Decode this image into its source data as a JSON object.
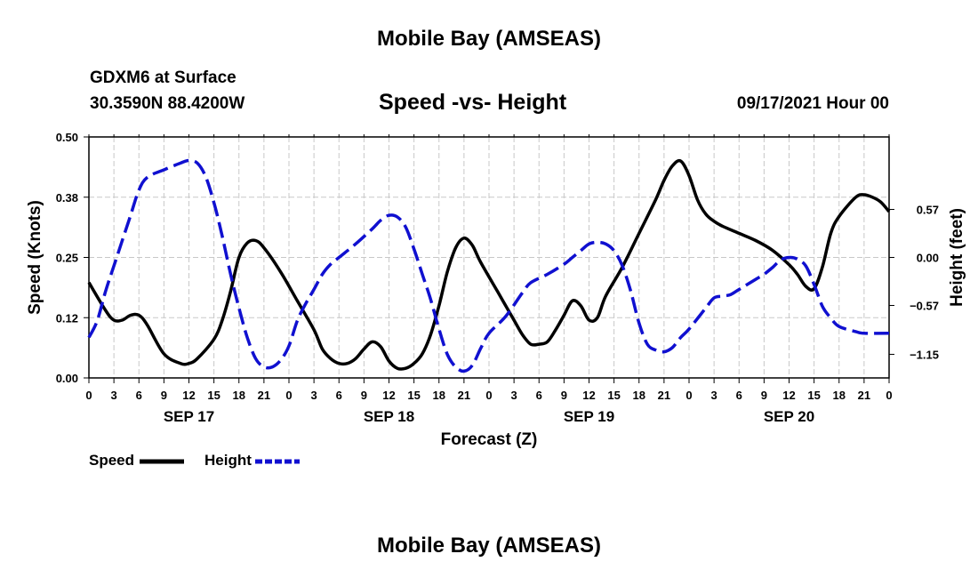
{
  "header": {
    "title": "Mobile Bay (AMSEAS)",
    "station": "GDXM6 at Surface",
    "coords": "30.3590N  88.4200W",
    "subtitle": "Speed -vs- Height",
    "datetime": "09/17/2021 Hour 00"
  },
  "footer": {
    "title": "Mobile Bay (AMSEAS)"
  },
  "legend": {
    "speed_label": "Speed",
    "height_label": "Height"
  },
  "colors": {
    "speed": "#000000",
    "height": "#1010d0",
    "grid": "#c8c8c8"
  },
  "chart_data": {
    "type": "line",
    "xlabel": "Forecast (Z)",
    "ylabel_left": "Speed (Knots)",
    "ylabel_right": "Height (feet)",
    "x_range_hours": [
      0,
      96
    ],
    "x_tick_step_hours": 3,
    "x_tick_labels": [
      "0",
      "3",
      "6",
      "9",
      "12",
      "15",
      "18",
      "21",
      "0",
      "3",
      "6",
      "9",
      "12",
      "15",
      "18",
      "21",
      "0",
      "3",
      "6",
      "9",
      "12",
      "15",
      "18",
      "21",
      "0",
      "3",
      "6",
      "9",
      "12",
      "15",
      "18",
      "21",
      "0"
    ],
    "date_labels": [
      {
        "hour": 12,
        "label": "SEP 17"
      },
      {
        "hour": 36,
        "label": "SEP 18"
      },
      {
        "hour": 60,
        "label": "SEP 19"
      },
      {
        "hour": 84,
        "label": "SEP 20"
      }
    ],
    "ylim_left": [
      0,
      0.5
    ],
    "yticks_left": [
      {
        "value": 0,
        "label": "0.00"
      },
      {
        "value": 0.125,
        "label": "0.12"
      },
      {
        "value": 0.25,
        "label": "0.25"
      },
      {
        "value": 0.375,
        "label": "0.38"
      },
      {
        "value": 0.5,
        "label": "0.50"
      }
    ],
    "ylim_right": [
      -1.43,
      1.43
    ],
    "yticks_right": [
      {
        "value": 0.57,
        "label": "0.57"
      },
      {
        "value": 0,
        "label": "0.00"
      },
      {
        "value": -0.57,
        "label": "−0.57"
      },
      {
        "value": -1.15,
        "label": "−1.15"
      }
    ],
    "grid": true,
    "legend_position": "bottom-left",
    "series": [
      {
        "name": "Speed",
        "axis": "left",
        "style": "solid",
        "points": [
          [
            0,
            0.198
          ],
          [
            2,
            0.14
          ],
          [
            3,
            0.12
          ],
          [
            4,
            0.12
          ],
          [
            5,
            0.13
          ],
          [
            6,
            0.13
          ],
          [
            7,
            0.11
          ],
          [
            9,
            0.05
          ],
          [
            11,
            0.03
          ],
          [
            12,
            0.03
          ],
          [
            13,
            0.04
          ],
          [
            15,
            0.08
          ],
          [
            16,
            0.12
          ],
          [
            17,
            0.18
          ],
          [
            18,
            0.25
          ],
          [
            19,
            0.28
          ],
          [
            20,
            0.285
          ],
          [
            21,
            0.27
          ],
          [
            23,
            0.22
          ],
          [
            25,
            0.16
          ],
          [
            27,
            0.1
          ],
          [
            28,
            0.06
          ],
          [
            29,
            0.04
          ],
          [
            30,
            0.03
          ],
          [
            31,
            0.03
          ],
          [
            32,
            0.04
          ],
          [
            33,
            0.06
          ],
          [
            34,
            0.075
          ],
          [
            35,
            0.065
          ],
          [
            36,
            0.035
          ],
          [
            37,
            0.02
          ],
          [
            38,
            0.02
          ],
          [
            39,
            0.03
          ],
          [
            40,
            0.05
          ],
          [
            41,
            0.09
          ],
          [
            42,
            0.15
          ],
          [
            43,
            0.22
          ],
          [
            44,
            0.27
          ],
          [
            45,
            0.29
          ],
          [
            46,
            0.275
          ],
          [
            47,
            0.24
          ],
          [
            49,
            0.18
          ],
          [
            51,
            0.12
          ],
          [
            52,
            0.09
          ],
          [
            53,
            0.07
          ],
          [
            54,
            0.07
          ],
          [
            55,
            0.075
          ],
          [
            56,
            0.1
          ],
          [
            57,
            0.13
          ],
          [
            58,
            0.16
          ],
          [
            59,
            0.15
          ],
          [
            60,
            0.12
          ],
          [
            61,
            0.125
          ],
          [
            62,
            0.17
          ],
          [
            64,
            0.23
          ],
          [
            66,
            0.3
          ],
          [
            68,
            0.37
          ],
          [
            69,
            0.41
          ],
          [
            70,
            0.44
          ],
          [
            71,
            0.45
          ],
          [
            72,
            0.42
          ],
          [
            73,
            0.37
          ],
          [
            74,
            0.34
          ],
          [
            75,
            0.325
          ],
          [
            76,
            0.315
          ],
          [
            78,
            0.3
          ],
          [
            80,
            0.285
          ],
          [
            82,
            0.265
          ],
          [
            84,
            0.235
          ],
          [
            85,
            0.215
          ],
          [
            86,
            0.19
          ],
          [
            87,
            0.185
          ],
          [
            88,
            0.23
          ],
          [
            89,
            0.3
          ],
          [
            90,
            0.335
          ],
          [
            92,
            0.375
          ],
          [
            93,
            0.38
          ],
          [
            94,
            0.375
          ],
          [
            95,
            0.365
          ],
          [
            96,
            0.345
          ]
        ]
      },
      {
        "name": "Height",
        "axis": "right",
        "style": "dashed",
        "points": [
          [
            0,
            -0.95
          ],
          [
            1,
            -0.75
          ],
          [
            2,
            -0.4
          ],
          [
            3,
            -0.1
          ],
          [
            4,
            0.2
          ],
          [
            5,
            0.5
          ],
          [
            6,
            0.8
          ],
          [
            7,
            0.95
          ],
          [
            9,
            1.04
          ],
          [
            11,
            1.12
          ],
          [
            12,
            1.15
          ],
          [
            13,
            1.12
          ],
          [
            14,
            0.96
          ],
          [
            15,
            0.65
          ],
          [
            16,
            0.25
          ],
          [
            17,
            -0.2
          ],
          [
            18,
            -0.6
          ],
          [
            19,
            -0.95
          ],
          [
            20,
            -1.2
          ],
          [
            21,
            -1.3
          ],
          [
            22,
            -1.3
          ],
          [
            23,
            -1.22
          ],
          [
            24,
            -1.05
          ],
          [
            25,
            -0.75
          ],
          [
            26,
            -0.55
          ],
          [
            27,
            -0.38
          ],
          [
            28,
            -0.2
          ],
          [
            29,
            -0.08
          ],
          [
            30,
            0.0
          ],
          [
            32,
            0.16
          ],
          [
            34,
            0.34
          ],
          [
            35,
            0.44
          ],
          [
            36,
            0.5
          ],
          [
            37,
            0.48
          ],
          [
            38,
            0.36
          ],
          [
            39,
            0.1
          ],
          [
            40,
            -0.2
          ],
          [
            41,
            -0.5
          ],
          [
            42,
            -0.85
          ],
          [
            43,
            -1.15
          ],
          [
            44,
            -1.3
          ],
          [
            45,
            -1.35
          ],
          [
            46,
            -1.28
          ],
          [
            47,
            -1.08
          ],
          [
            48,
            -0.9
          ],
          [
            50,
            -0.7
          ],
          [
            52,
            -0.42
          ],
          [
            53,
            -0.3
          ],
          [
            55,
            -0.2
          ],
          [
            57,
            -0.08
          ],
          [
            58,
            0.0
          ],
          [
            59,
            0.08
          ],
          [
            60,
            0.16
          ],
          [
            61,
            0.18
          ],
          [
            62,
            0.16
          ],
          [
            63,
            0.08
          ],
          [
            64,
            -0.1
          ],
          [
            65,
            -0.4
          ],
          [
            66,
            -0.78
          ],
          [
            67,
            -1.03
          ],
          [
            68,
            -1.1
          ],
          [
            69,
            -1.12
          ],
          [
            70,
            -1.07
          ],
          [
            71,
            -0.95
          ],
          [
            72,
            -0.85
          ],
          [
            74,
            -0.6
          ],
          [
            75,
            -0.48
          ],
          [
            76,
            -0.46
          ],
          [
            77,
            -0.44
          ],
          [
            78,
            -0.38
          ],
          [
            80,
            -0.26
          ],
          [
            81,
            -0.2
          ],
          [
            82,
            -0.12
          ],
          [
            83,
            -0.03
          ],
          [
            84,
            0.0
          ],
          [
            85,
            -0.02
          ],
          [
            86,
            -0.1
          ],
          [
            87,
            -0.32
          ],
          [
            88,
            -0.58
          ],
          [
            89,
            -0.72
          ],
          [
            90,
            -0.82
          ],
          [
            92,
            -0.88
          ],
          [
            93,
            -0.9
          ],
          [
            96,
            -0.9
          ]
        ]
      }
    ]
  }
}
